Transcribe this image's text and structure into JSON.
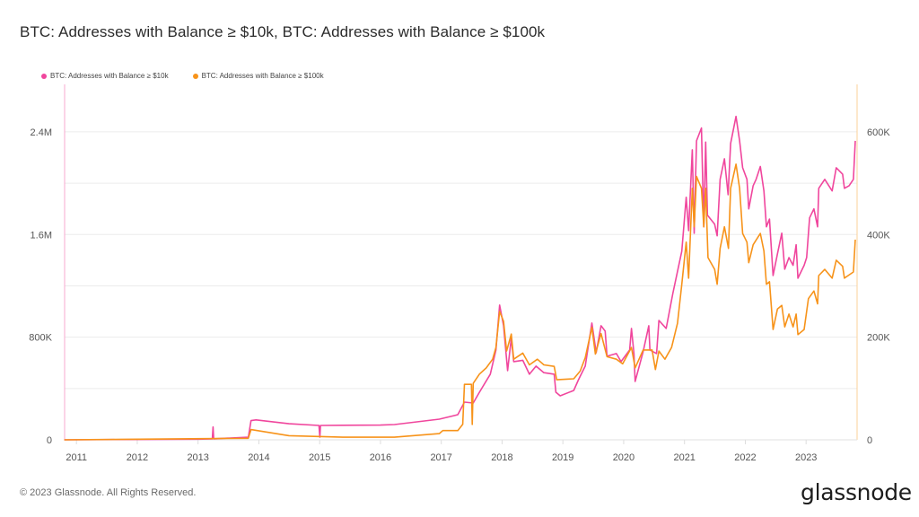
{
  "chart_data": {
    "type": "line",
    "title": "BTC: Addresses with Balance ≥ $10k, BTC: Addresses with Balance ≥ $100k",
    "xlabel": "",
    "x_range": [
      "2010-10-22",
      "2023-11-03"
    ],
    "x_ticks": [
      "2011",
      "2012",
      "2013",
      "2014",
      "2015",
      "2016",
      "2017",
      "2018",
      "2019",
      "2020",
      "2021",
      "2022",
      "2023"
    ],
    "y_left": {
      "ylim": [
        0,
        2770000
      ],
      "ticks": [
        0,
        800000,
        1600000,
        2400000
      ],
      "tick_labels": [
        "0",
        "800K",
        "1.6M",
        "2.4M"
      ],
      "grid_step": 400000
    },
    "y_right": {
      "ylim": [
        0,
        692500
      ],
      "ticks": [
        0,
        200000,
        400000,
        600000
      ],
      "tick_labels": [
        "0",
        "200K",
        "400K",
        "600K"
      ]
    },
    "grid": true,
    "legend_position": "top-left",
    "series": [
      {
        "name": "BTC: Addresses with Balance ≥ $10k",
        "axis": "left",
        "color": "#f0469d",
        "points": [
          [
            "2010-10-20",
            0
          ],
          [
            "2012-12-31",
            5000
          ],
          [
            "2013-03-28",
            8000
          ],
          [
            "2013-04-01",
            100000
          ],
          [
            "2013-04-05",
            8000
          ],
          [
            "2013-10-30",
            20000
          ],
          [
            "2013-11-15",
            150000
          ],
          [
            "2013-12-15",
            155000
          ],
          [
            "2014-07-01",
            125000
          ],
          [
            "2014-12-28",
            112000
          ],
          [
            "2015-01-02",
            20000
          ],
          [
            "2015-01-06",
            112000
          ],
          [
            "2016-01-01",
            115000
          ],
          [
            "2016-03-25",
            119000
          ],
          [
            "2016-12-20",
            161000
          ],
          [
            "2017-04-10",
            196000
          ],
          [
            "2017-05-20",
            294000
          ],
          [
            "2017-07-12",
            287000
          ],
          [
            "2017-08-18",
            371000
          ],
          [
            "2017-10-22",
            511000
          ],
          [
            "2017-11-25",
            700000
          ],
          [
            "2017-12-17",
            1050000
          ],
          [
            "2018-01-10",
            889000
          ],
          [
            "2018-02-03",
            539000
          ],
          [
            "2018-02-25",
            791000
          ],
          [
            "2018-03-12",
            609000
          ],
          [
            "2018-05-05",
            620000
          ],
          [
            "2018-06-14",
            511000
          ],
          [
            "2018-07-24",
            574000
          ],
          [
            "2018-09-09",
            523000
          ],
          [
            "2018-11-10",
            511000
          ],
          [
            "2018-11-20",
            371000
          ],
          [
            "2018-12-16",
            343000
          ],
          [
            "2019-03-07",
            385000
          ],
          [
            "2019-04-05",
            469000
          ],
          [
            "2019-05-15",
            574000
          ],
          [
            "2019-06-24",
            910000
          ],
          [
            "2019-07-20",
            679000
          ],
          [
            "2019-08-18",
            889000
          ],
          [
            "2019-09-12",
            847000
          ],
          [
            "2019-09-23",
            651000
          ],
          [
            "2019-11-18",
            672000
          ],
          [
            "2019-12-16",
            609000
          ],
          [
            "2020-02-06",
            700000
          ],
          [
            "2020-02-17",
            868000
          ],
          [
            "2020-03-03",
            672000
          ],
          [
            "2020-03-10",
            455000
          ],
          [
            "2020-04-27",
            686000
          ],
          [
            "2020-05-31",
            889000
          ],
          [
            "2020-06-07",
            700000
          ],
          [
            "2020-07-17",
            672000
          ],
          [
            "2020-07-31",
            930000
          ],
          [
            "2020-09-13",
            868000
          ],
          [
            "2020-10-23",
            1140000
          ],
          [
            "2020-12-16",
            1470000
          ],
          [
            "2021-01-11",
            1890000
          ],
          [
            "2021-01-26",
            1630000
          ],
          [
            "2021-02-17",
            2260000
          ],
          [
            "2021-02-28",
            1610000
          ],
          [
            "2021-03-14",
            2330000
          ],
          [
            "2021-04-13",
            2430000
          ],
          [
            "2021-04-27",
            1660000
          ],
          [
            "2021-05-08",
            2320000
          ],
          [
            "2021-05-19",
            1750000
          ],
          [
            "2021-07-01",
            1680000
          ],
          [
            "2021-07-16",
            1590000
          ],
          [
            "2021-08-03",
            2030000
          ],
          [
            "2021-08-29",
            2190000
          ],
          [
            "2021-09-20",
            1910000
          ],
          [
            "2021-10-05",
            2310000
          ],
          [
            "2021-11-06",
            2520000
          ],
          [
            "2021-11-28",
            2330000
          ],
          [
            "2021-12-16",
            2120000
          ],
          [
            "2022-01-11",
            2030000
          ],
          [
            "2022-01-22",
            1800000
          ],
          [
            "2022-02-17",
            1980000
          ],
          [
            "2022-03-07",
            2030000
          ],
          [
            "2022-04-01",
            2130000
          ],
          [
            "2022-04-23",
            1940000
          ],
          [
            "2022-05-08",
            1660000
          ],
          [
            "2022-05-26",
            1720000
          ],
          [
            "2022-06-17",
            1280000
          ],
          [
            "2022-07-13",
            1450000
          ],
          [
            "2022-08-08",
            1610000
          ],
          [
            "2022-08-26",
            1330000
          ],
          [
            "2022-09-20",
            1420000
          ],
          [
            "2022-10-15",
            1360000
          ],
          [
            "2022-11-02",
            1520000
          ],
          [
            "2022-11-13",
            1260000
          ],
          [
            "2022-12-20",
            1360000
          ],
          [
            "2023-01-04",
            1420000
          ],
          [
            "2023-01-22",
            1730000
          ],
          [
            "2023-02-17",
            1800000
          ],
          [
            "2023-03-11",
            1660000
          ],
          [
            "2023-03-18",
            1960000
          ],
          [
            "2023-04-23",
            2030000
          ],
          [
            "2023-06-06",
            1940000
          ],
          [
            "2023-07-01",
            2120000
          ],
          [
            "2023-08-08",
            2070000
          ],
          [
            "2023-08-19",
            1960000
          ],
          [
            "2023-09-16",
            1980000
          ],
          [
            "2023-10-12",
            2030000
          ],
          [
            "2023-10-23",
            2330000
          ]
        ]
      },
      {
        "name": "BTC: Addresses with Balance ≥ $100k",
        "axis": "right",
        "color": "#f7931a",
        "points": [
          [
            "2010-10-20",
            0
          ],
          [
            "2013-10-30",
            3000
          ],
          [
            "2013-11-15",
            20000
          ],
          [
            "2014-07-01",
            8000
          ],
          [
            "2015-06-01",
            5000
          ],
          [
            "2016-03-25",
            5000
          ],
          [
            "2016-12-20",
            12000
          ],
          [
            "2017-01-10",
            18000
          ],
          [
            "2017-04-10",
            18000
          ],
          [
            "2017-05-10",
            30000
          ],
          [
            "2017-05-20",
            108000
          ],
          [
            "2017-07-01",
            108000
          ],
          [
            "2017-07-06",
            30000
          ],
          [
            "2017-07-12",
            110000
          ],
          [
            "2017-08-18",
            128000
          ],
          [
            "2017-09-28",
            140000
          ],
          [
            "2017-11-05",
            157000
          ],
          [
            "2017-11-25",
            180000
          ],
          [
            "2017-12-17",
            250000
          ],
          [
            "2018-01-10",
            231000
          ],
          [
            "2018-01-28",
            173000
          ],
          [
            "2018-02-25",
            206000
          ],
          [
            "2018-03-12",
            157000
          ],
          [
            "2018-05-05",
            169000
          ],
          [
            "2018-06-14",
            146000
          ],
          [
            "2018-08-01",
            157000
          ],
          [
            "2018-09-09",
            146000
          ],
          [
            "2018-11-10",
            143000
          ],
          [
            "2018-11-25",
            117000
          ],
          [
            "2019-03-07",
            119000
          ],
          [
            "2019-04-15",
            134000
          ],
          [
            "2019-05-15",
            160000
          ],
          [
            "2019-06-24",
            219000
          ],
          [
            "2019-07-15",
            167000
          ],
          [
            "2019-08-18",
            207000
          ],
          [
            "2019-09-23",
            162000
          ],
          [
            "2019-11-18",
            157000
          ],
          [
            "2019-12-26",
            148000
          ],
          [
            "2020-02-17",
            180000
          ],
          [
            "2020-03-10",
            140000
          ],
          [
            "2020-04-27",
            175000
          ],
          [
            "2020-06-20",
            175000
          ],
          [
            "2020-07-10",
            137000
          ],
          [
            "2020-07-31",
            173000
          ],
          [
            "2020-09-05",
            157000
          ],
          [
            "2020-10-15",
            180000
          ],
          [
            "2020-11-20",
            227000
          ],
          [
            "2020-12-16",
            303000
          ],
          [
            "2021-01-11",
            385000
          ],
          [
            "2021-01-26",
            315000
          ],
          [
            "2021-02-17",
            490000
          ],
          [
            "2021-02-28",
            415000
          ],
          [
            "2021-03-14",
            513000
          ],
          [
            "2021-04-13",
            490000
          ],
          [
            "2021-04-27",
            415000
          ],
          [
            "2021-05-08",
            490000
          ],
          [
            "2021-05-22",
            355000
          ],
          [
            "2021-07-01",
            332000
          ],
          [
            "2021-07-16",
            303000
          ],
          [
            "2021-08-03",
            373000
          ],
          [
            "2021-08-29",
            415000
          ],
          [
            "2021-09-22",
            373000
          ],
          [
            "2021-10-05",
            490000
          ],
          [
            "2021-11-06",
            537000
          ],
          [
            "2021-11-28",
            490000
          ],
          [
            "2021-12-16",
            402000
          ],
          [
            "2022-01-11",
            385000
          ],
          [
            "2022-01-22",
            345000
          ],
          [
            "2022-02-17",
            380000
          ],
          [
            "2022-04-01",
            402000
          ],
          [
            "2022-04-23",
            368000
          ],
          [
            "2022-05-08",
            303000
          ],
          [
            "2022-05-26",
            308000
          ],
          [
            "2022-06-17",
            215000
          ],
          [
            "2022-07-13",
            255000
          ],
          [
            "2022-08-08",
            262000
          ],
          [
            "2022-08-26",
            220000
          ],
          [
            "2022-09-20",
            245000
          ],
          [
            "2022-10-15",
            220000
          ],
          [
            "2022-11-02",
            245000
          ],
          [
            "2022-11-13",
            205000
          ],
          [
            "2022-12-20",
            215000
          ],
          [
            "2023-01-15",
            275000
          ],
          [
            "2023-02-17",
            290000
          ],
          [
            "2023-03-11",
            265000
          ],
          [
            "2023-03-18",
            320000
          ],
          [
            "2023-04-23",
            332000
          ],
          [
            "2023-06-06",
            315000
          ],
          [
            "2023-07-01",
            350000
          ],
          [
            "2023-08-08",
            338000
          ],
          [
            "2023-08-19",
            315000
          ],
          [
            "2023-10-12",
            327000
          ],
          [
            "2023-10-23",
            390000
          ]
        ]
      }
    ]
  },
  "footer": {
    "copyright": "© 2023 Glassnode. All Rights Reserved.",
    "logo_text": "glassnode"
  }
}
